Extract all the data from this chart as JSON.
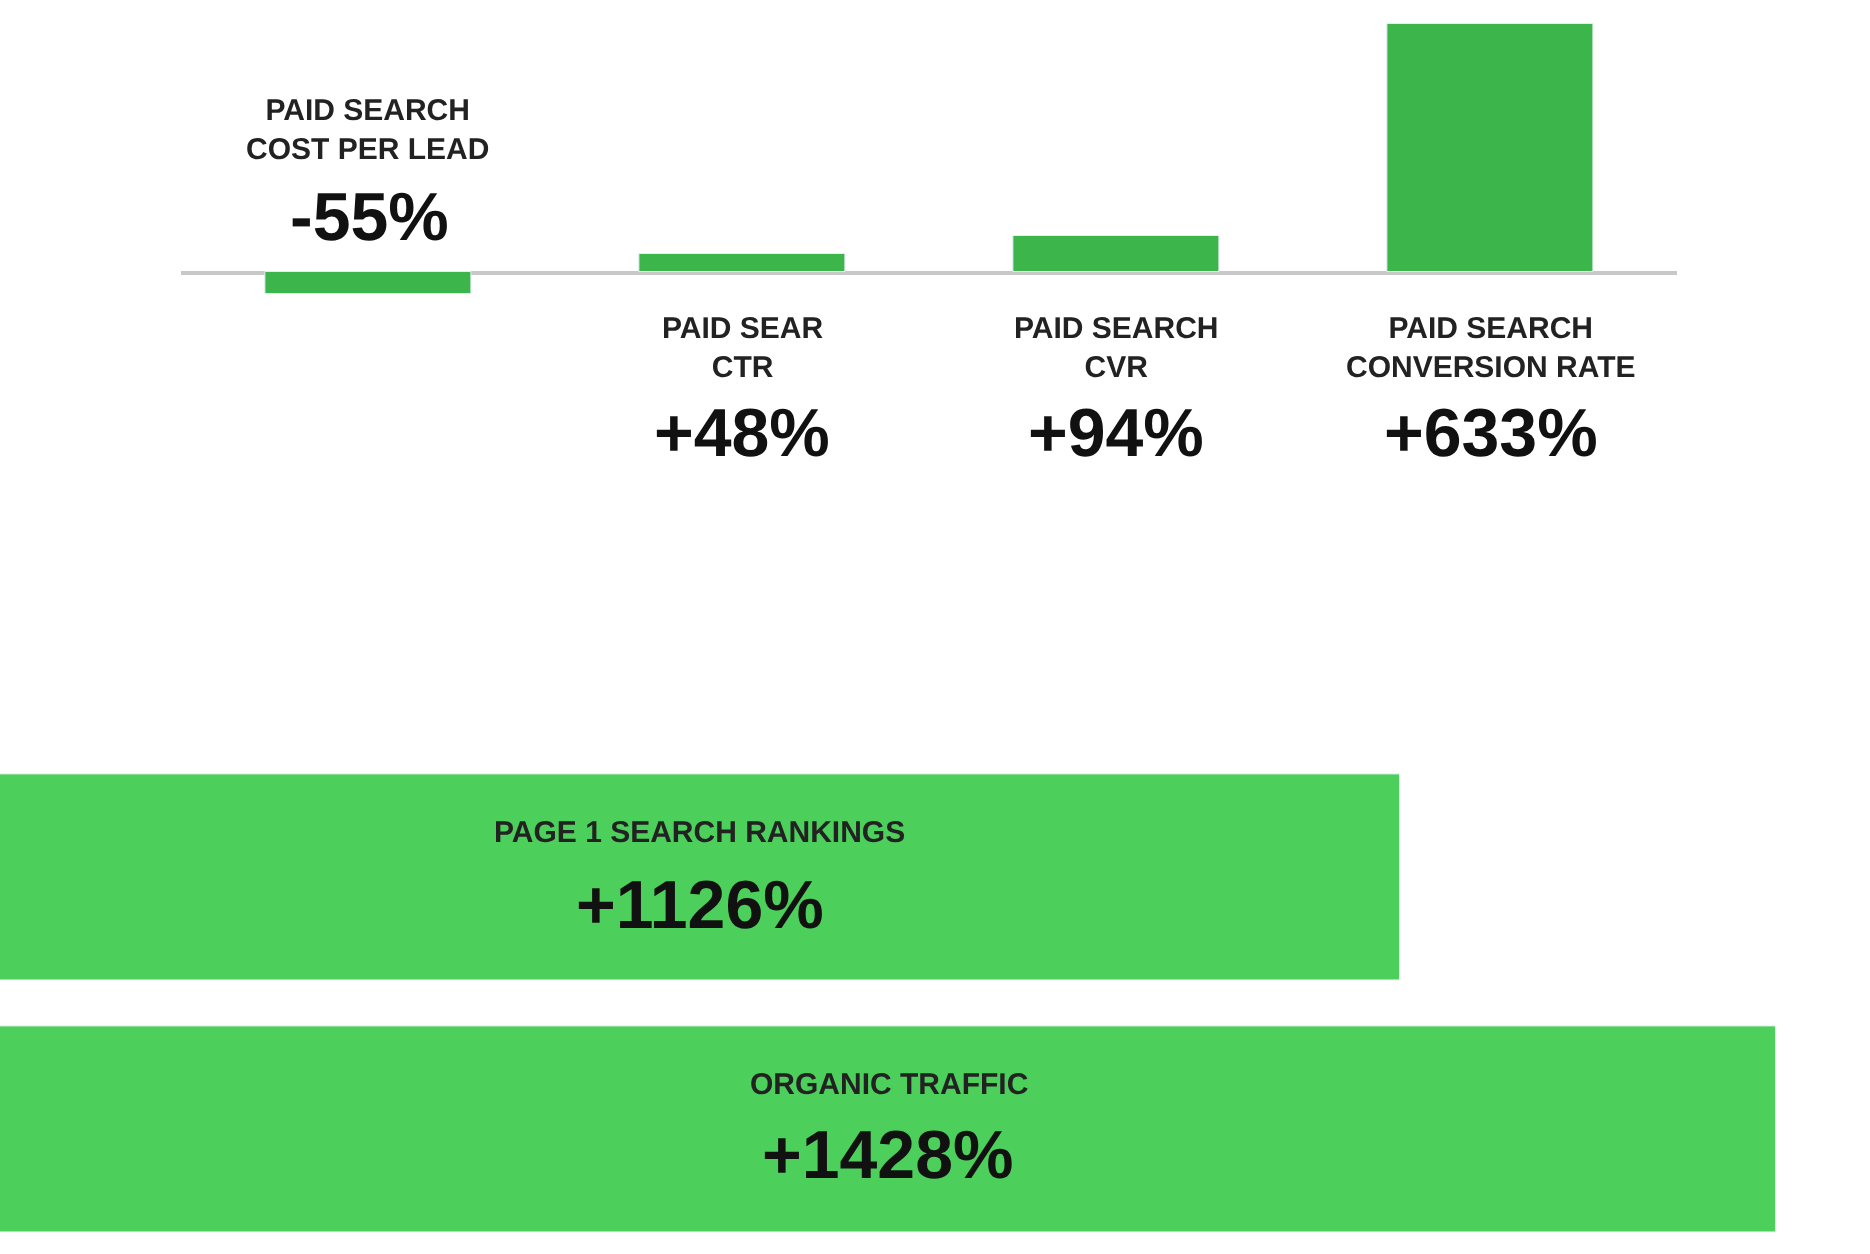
{
  "chart_data": [
    {
      "type": "bar",
      "categories": [
        "PAID SEARCH COST PER LEAD",
        "PAID SEAR CTR",
        "PAID SEARCH CVR",
        "PAID SEARCH CONVERSION RATE"
      ],
      "values": [
        -55,
        48,
        94,
        633
      ],
      "value_labels": [
        "-55%",
        "+48%",
        "+94%",
        "+633%"
      ],
      "color": "#3cb54a",
      "tick_labels": false
    },
    {
      "type": "bar",
      "orientation": "horizontal",
      "categories": [
        "PAGE 1 SEARCH RANKINGS",
        "ORGANIC TRAFFIC"
      ],
      "values": [
        1126,
        1428
      ],
      "value_labels": [
        "+1126%",
        "+1428%"
      ],
      "color": "#4ccf5b",
      "tick_labels": false
    }
  ]
}
